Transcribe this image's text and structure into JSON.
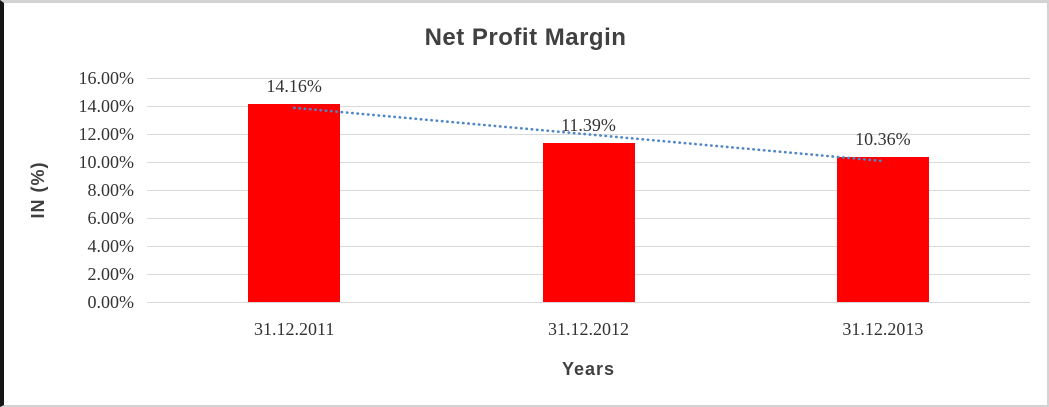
{
  "chart_data": {
    "type": "bar",
    "title": "Net Profit Margin",
    "xlabel": "Years",
    "ylabel": "IN (%)",
    "categories": [
      "31.12.2011",
      "31.12.2012",
      "31.12.2013"
    ],
    "values": [
      14.16,
      11.39,
      10.36
    ],
    "value_labels": [
      "14.16%",
      "11.39%",
      "10.36%"
    ],
    "ylim": [
      0,
      16
    ],
    "ytick_labels": [
      "0.00%",
      "2.00%",
      "4.00%",
      "6.00%",
      "8.00%",
      "10.00%",
      "12.00%",
      "14.00%",
      "16.00%"
    ],
    "grid": true,
    "legend": "none",
    "trendline": {
      "type": "linear",
      "style": "dotted"
    },
    "colors": {
      "bar": "#FF0000",
      "trendline": "#4E86C6",
      "gridline": "#D9D9D9",
      "title": "#404040",
      "tick_label": "#333333",
      "axis_title": "#404040"
    }
  }
}
